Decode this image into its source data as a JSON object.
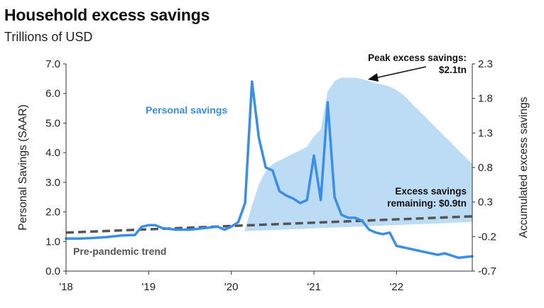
{
  "header": {
    "title": "Household excess savings",
    "subtitle": "Trillions of USD"
  },
  "colors": {
    "personal_savings": "#3a8ee6",
    "excess_area": "#bcdcf5",
    "trend": "#555555",
    "axis": "#333333"
  },
  "chart_data": {
    "type": "line",
    "title": "Household excess savings",
    "subtitle": "Trillions of USD",
    "xlabel": "",
    "ylabel": "Personal Savings (SAAR)",
    "ylabel_right": "Accumulated excess savings",
    "ylim": [
      0,
      7
    ],
    "ylim_right": [
      -0.7,
      2.3
    ],
    "yticks": [
      "0.0",
      "1.0",
      "2.0",
      "3.0",
      "4.0",
      "5.0",
      "6.0",
      "7.0"
    ],
    "yticks_right": [
      "-0.7",
      "-0.2",
      "0.3",
      "0.8",
      "1.3",
      "1.8",
      "2.3"
    ],
    "x_range": [
      "2018-01",
      "2022-12"
    ],
    "xticks": [
      {
        "label": "'18",
        "date": "2018-01"
      },
      {
        "label": "'19",
        "date": "2019-01"
      },
      {
        "label": "'20",
        "date": "2020-01"
      },
      {
        "label": "'21",
        "date": "2021-01"
      },
      {
        "label": "'22",
        "date": "2022-01"
      }
    ],
    "grid": false,
    "series": [
      {
        "name": "Personal savings",
        "axis": "left",
        "style": "line",
        "points": [
          [
            "2018-01",
            1.1
          ],
          [
            "2018-03",
            1.1
          ],
          [
            "2018-05",
            1.12
          ],
          [
            "2018-07",
            1.15
          ],
          [
            "2018-09",
            1.2
          ],
          [
            "2018-11",
            1.22
          ],
          [
            "2018-12",
            1.5
          ],
          [
            "2019-01",
            1.55
          ],
          [
            "2019-02",
            1.55
          ],
          [
            "2019-03",
            1.45
          ],
          [
            "2019-05",
            1.4
          ],
          [
            "2019-07",
            1.4
          ],
          [
            "2019-09",
            1.45
          ],
          [
            "2019-11",
            1.5
          ],
          [
            "2019-12",
            1.4
          ],
          [
            "2020-01",
            1.5
          ],
          [
            "2020-02",
            1.65
          ],
          [
            "2020-03",
            2.3
          ],
          [
            "2020-04",
            6.4
          ],
          [
            "2020-05",
            4.5
          ],
          [
            "2020-06",
            3.5
          ],
          [
            "2020-07",
            3.4
          ],
          [
            "2020-08",
            2.7
          ],
          [
            "2020-09",
            2.55
          ],
          [
            "2020-10",
            2.45
          ],
          [
            "2020-11",
            2.3
          ],
          [
            "2020-12",
            2.4
          ],
          [
            "2021-01",
            3.9
          ],
          [
            "2021-02",
            2.4
          ],
          [
            "2021-03",
            5.7
          ],
          [
            "2021-04",
            2.5
          ],
          [
            "2021-05",
            1.9
          ],
          [
            "2021-06",
            1.8
          ],
          [
            "2021-07",
            1.8
          ],
          [
            "2021-08",
            1.7
          ],
          [
            "2021-09",
            1.4
          ],
          [
            "2021-10",
            1.3
          ],
          [
            "2021-11",
            1.25
          ],
          [
            "2021-12",
            1.3
          ],
          [
            "2022-01",
            0.85
          ],
          [
            "2022-03",
            0.75
          ],
          [
            "2022-05",
            0.65
          ],
          [
            "2022-07",
            0.55
          ],
          [
            "2022-08",
            0.6
          ],
          [
            "2022-10",
            0.45
          ],
          [
            "2022-12",
            0.5
          ]
        ]
      },
      {
        "name": "Pre-pandemic trend",
        "axis": "left",
        "style": "dashed",
        "points": [
          [
            "2018-01",
            1.3
          ],
          [
            "2022-12",
            1.85
          ]
        ]
      },
      {
        "name": "Excess savings",
        "axis": "right",
        "style": "area",
        "points": [
          [
            "2020-03",
            -0.1
          ],
          [
            "2020-04",
            0.25
          ],
          [
            "2020-05",
            0.55
          ],
          [
            "2020-06",
            0.75
          ],
          [
            "2020-07",
            0.85
          ],
          [
            "2020-08",
            0.9
          ],
          [
            "2020-09",
            0.95
          ],
          [
            "2020-10",
            1.0
          ],
          [
            "2020-11",
            1.05
          ],
          [
            "2020-12",
            1.1
          ],
          [
            "2021-01",
            1.25
          ],
          [
            "2021-02",
            1.35
          ],
          [
            "2021-03",
            1.9
          ],
          [
            "2021-04",
            2.05
          ],
          [
            "2021-05",
            2.1
          ],
          [
            "2021-06",
            2.1
          ],
          [
            "2021-07",
            2.1
          ],
          [
            "2021-08",
            2.08
          ],
          [
            "2021-09",
            2.05
          ],
          [
            "2021-10",
            2.02
          ],
          [
            "2021-11",
            2.0
          ],
          [
            "2021-12",
            1.97
          ],
          [
            "2022-01",
            1.92
          ],
          [
            "2022-02",
            1.85
          ],
          [
            "2022-03",
            1.75
          ],
          [
            "2022-04",
            1.65
          ],
          [
            "2022-05",
            1.55
          ],
          [
            "2022-06",
            1.45
          ],
          [
            "2022-07",
            1.35
          ],
          [
            "2022-08",
            1.25
          ],
          [
            "2022-09",
            1.15
          ],
          [
            "2022-10",
            1.05
          ],
          [
            "2022-11",
            0.95
          ],
          [
            "2022-12",
            0.85
          ]
        ]
      }
    ],
    "labels": {
      "personal_savings": "Personal savings",
      "trend": "Pre-pandemic trend",
      "peak_line1": "Peak excess savings:",
      "peak_line2": "$2.1tn",
      "remaining_line1": "Excess savings",
      "remaining_line2": "remaining: $0.9tn"
    }
  }
}
